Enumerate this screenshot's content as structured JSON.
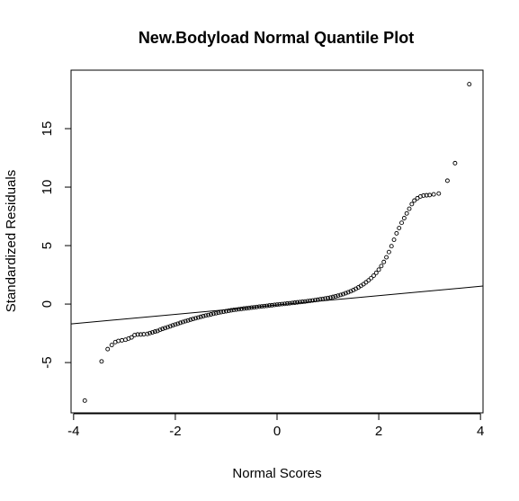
{
  "chart_data": {
    "type": "scatter",
    "title": "New.Bodyload Normal Quantile Plot",
    "xlabel": "Normal Scores",
    "ylabel": "Standardized Residuals",
    "xlim": [
      -4.05,
      4.05
    ],
    "ylim": [
      -9.3,
      20.0
    ],
    "x_ticks": [
      -4,
      -2,
      0,
      2,
      4
    ],
    "x_tick_labels": [
      "-4",
      "-2",
      "0",
      "2",
      "4"
    ],
    "y_ticks": [
      -5,
      0,
      5,
      10,
      15
    ],
    "y_tick_labels": [
      "-5",
      "0",
      "5",
      "10",
      "15"
    ],
    "grid": false,
    "legend": "none",
    "colors": {
      "points": "#000000",
      "line": "#000000",
      "frame": "#000000"
    },
    "reference_line": {
      "intercept": -0.08,
      "slope": 0.4
    },
    "series": [
      {
        "points": [
          [
            -3.78,
            -8.25
          ],
          [
            -3.45,
            -4.9
          ],
          [
            -3.33,
            -3.85
          ],
          [
            -3.25,
            -3.5
          ],
          [
            -3.18,
            -3.25
          ],
          [
            -3.12,
            -3.15
          ],
          [
            -3.05,
            -3.1
          ],
          [
            -2.98,
            -3.05
          ],
          [
            -2.92,
            -2.95
          ],
          [
            -2.86,
            -2.85
          ],
          [
            -2.8,
            -2.65
          ],
          [
            -2.74,
            -2.6
          ],
          [
            -2.68,
            -2.6
          ],
          [
            -2.62,
            -2.58
          ],
          [
            -2.55,
            -2.55
          ],
          [
            -2.5,
            -2.48
          ],
          [
            -2.45,
            -2.42
          ],
          [
            -2.4,
            -2.35
          ],
          [
            -2.35,
            -2.3
          ],
          [
            -2.3,
            -2.2
          ],
          [
            -2.25,
            -2.12
          ],
          [
            -2.2,
            -2.05
          ],
          [
            -2.15,
            -1.98
          ],
          [
            -2.1,
            -1.9
          ],
          [
            -2.05,
            -1.82
          ],
          [
            -2.0,
            -1.75
          ],
          [
            -1.95,
            -1.68
          ],
          [
            -1.9,
            -1.6
          ],
          [
            -1.85,
            -1.53
          ],
          [
            -1.8,
            -1.46
          ],
          [
            -1.75,
            -1.4
          ],
          [
            -1.7,
            -1.33
          ],
          [
            -1.65,
            -1.27
          ],
          [
            -1.6,
            -1.21
          ],
          [
            -1.55,
            -1.15
          ],
          [
            -1.5,
            -1.09
          ],
          [
            -1.45,
            -1.03
          ],
          [
            -1.4,
            -0.98
          ],
          [
            -1.35,
            -0.93
          ],
          [
            -1.3,
            -0.88
          ],
          [
            -1.25,
            -0.83
          ],
          [
            -1.2,
            -0.78
          ],
          [
            -1.15,
            -0.74
          ],
          [
            -1.1,
            -0.69
          ],
          [
            -1.05,
            -0.65
          ],
          [
            -1.0,
            -0.61
          ],
          [
            -0.95,
            -0.57
          ],
          [
            -0.9,
            -0.53
          ],
          [
            -0.85,
            -0.5
          ],
          [
            -0.8,
            -0.47
          ],
          [
            -0.75,
            -0.44
          ],
          [
            -0.7,
            -0.41
          ],
          [
            -0.65,
            -0.38
          ],
          [
            -0.6,
            -0.36
          ],
          [
            -0.55,
            -0.33
          ],
          [
            -0.5,
            -0.3
          ],
          [
            -0.45,
            -0.28
          ],
          [
            -0.4,
            -0.25
          ],
          [
            -0.35,
            -0.22
          ],
          [
            -0.3,
            -0.2
          ],
          [
            -0.25,
            -0.17
          ],
          [
            -0.2,
            -0.15
          ],
          [
            -0.15,
            -0.12
          ],
          [
            -0.1,
            -0.1
          ],
          [
            -0.05,
            -0.07
          ],
          [
            0.0,
            -0.05
          ],
          [
            0.05,
            -0.02
          ],
          [
            0.1,
            0.0
          ],
          [
            0.15,
            0.02
          ],
          [
            0.2,
            0.05
          ],
          [
            0.25,
            0.07
          ],
          [
            0.3,
            0.1
          ],
          [
            0.35,
            0.12
          ],
          [
            0.4,
            0.15
          ],
          [
            0.45,
            0.17
          ],
          [
            0.5,
            0.2
          ],
          [
            0.55,
            0.22
          ],
          [
            0.6,
            0.25
          ],
          [
            0.65,
            0.28
          ],
          [
            0.7,
            0.31
          ],
          [
            0.75,
            0.34
          ],
          [
            0.8,
            0.37
          ],
          [
            0.85,
            0.41
          ],
          [
            0.9,
            0.44
          ],
          [
            0.95,
            0.48
          ],
          [
            1.0,
            0.52
          ],
          [
            1.05,
            0.56
          ],
          [
            1.1,
            0.61
          ],
          [
            1.15,
            0.66
          ],
          [
            1.2,
            0.72
          ],
          [
            1.25,
            0.78
          ],
          [
            1.3,
            0.85
          ],
          [
            1.35,
            0.93
          ],
          [
            1.4,
            1.01
          ],
          [
            1.45,
            1.1
          ],
          [
            1.5,
            1.2
          ],
          [
            1.55,
            1.31
          ],
          [
            1.6,
            1.43
          ],
          [
            1.65,
            1.56
          ],
          [
            1.7,
            1.7
          ],
          [
            1.75,
            1.86
          ],
          [
            1.8,
            2.03
          ],
          [
            1.85,
            2.22
          ],
          [
            1.9,
            2.43
          ],
          [
            1.95,
            2.67
          ],
          [
            2.0,
            2.94
          ],
          [
            2.05,
            3.25
          ],
          [
            2.1,
            3.6
          ],
          [
            2.15,
            4.0
          ],
          [
            2.2,
            4.45
          ],
          [
            2.25,
            4.95
          ],
          [
            2.3,
            5.5
          ],
          [
            2.35,
            6.05
          ],
          [
            2.4,
            6.5
          ],
          [
            2.45,
            6.95
          ],
          [
            2.5,
            7.35
          ],
          [
            2.55,
            7.75
          ],
          [
            2.6,
            8.15
          ],
          [
            2.65,
            8.55
          ],
          [
            2.7,
            8.85
          ],
          [
            2.76,
            9.05
          ],
          [
            2.82,
            9.2
          ],
          [
            2.88,
            9.28
          ],
          [
            2.94,
            9.3
          ],
          [
            3.0,
            9.32
          ],
          [
            3.08,
            9.38
          ],
          [
            3.18,
            9.45
          ],
          [
            3.35,
            10.55
          ],
          [
            3.5,
            12.05
          ],
          [
            3.78,
            18.8
          ]
        ]
      }
    ]
  }
}
